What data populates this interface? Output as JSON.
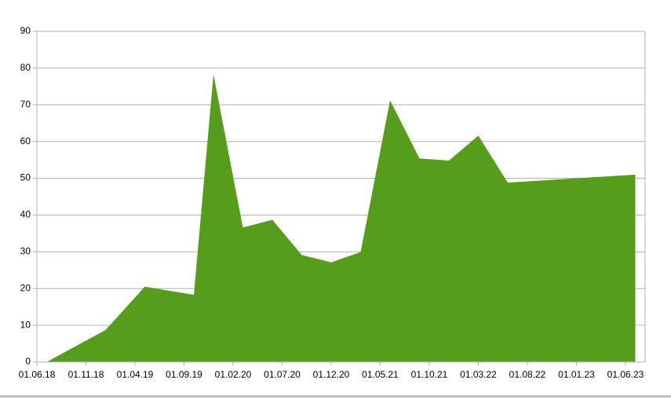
{
  "chart_data": {
    "type": "area",
    "color": "#579d1c",
    "grid": true,
    "x": [
      "01.07.18",
      "01.01.19",
      "01.05.19",
      "01.10.19",
      "01.12.19",
      "01.03.20",
      "01.06.20",
      "01.09.20",
      "01.12.20",
      "01.03.21",
      "01.06.21",
      "01.09.21",
      "01.12.21",
      "01.03.22",
      "01.06.22",
      "01.01.23",
      "01.07.23"
    ],
    "values": [
      0,
      8.7,
      20.5,
      18.3,
      78.3,
      36.6,
      38.7,
      29.1,
      27.1,
      29.9,
      71.2,
      55.4,
      54.8,
      61.6,
      48.8,
      50,
      51
    ],
    "xlim": [
      "01.06.18",
      "01.08.23"
    ],
    "xticks": [
      "01.06.18",
      "01.11.18",
      "01.04.19",
      "01.09.19",
      "01.02.20",
      "01.07.20",
      "01.12.20",
      "01.05.21",
      "01.10.21",
      "01.03.22",
      "01.08.22",
      "01.01.23",
      "01.06.23"
    ],
    "ylim": [
      0,
      90
    ],
    "yticks": [
      0,
      10,
      20,
      30,
      40,
      50,
      60,
      70,
      80,
      90
    ]
  }
}
